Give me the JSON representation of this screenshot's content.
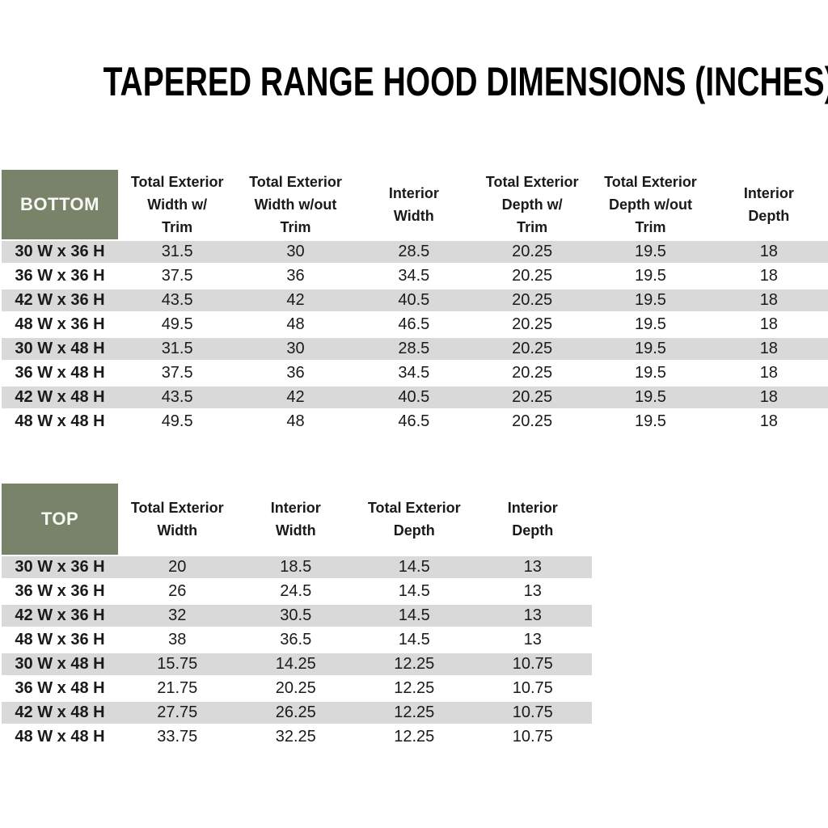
{
  "title": "TAPERED RANGE HOOD DIMENSIONS (INCHES)",
  "colors": {
    "header_green": "#79836A",
    "stripe_gray": "#d9d9d9",
    "title_text": "#000000",
    "body_text": "#1a1a1a",
    "corner_text": "#f7f7f4"
  },
  "bottom_table": {
    "corner_label": "BOTTOM",
    "columns": [
      "Total Exterior\nWidth w/\nTrim",
      "Total Exterior\nWidth w/out\nTrim",
      "Interior\nWidth",
      "Total Exterior\nDepth w/\nTrim",
      "Total Exterior\nDepth w/out\nTrim",
      "Interior\nDepth"
    ],
    "rows": [
      {
        "label": "30 W x 36 H",
        "values": [
          "31.5",
          "30",
          "28.5",
          "20.25",
          "19.5",
          "18"
        ]
      },
      {
        "label": "36 W x 36 H",
        "values": [
          "37.5",
          "36",
          "34.5",
          "20.25",
          "19.5",
          "18"
        ]
      },
      {
        "label": "42 W x 36 H",
        "values": [
          "43.5",
          "42",
          "40.5",
          "20.25",
          "19.5",
          "18"
        ]
      },
      {
        "label": "48 W x 36 H",
        "values": [
          "49.5",
          "48",
          "46.5",
          "20.25",
          "19.5",
          "18"
        ]
      },
      {
        "label": "30 W x 48 H",
        "values": [
          "31.5",
          "30",
          "28.5",
          "20.25",
          "19.5",
          "18"
        ]
      },
      {
        "label": "36 W x 48 H",
        "values": [
          "37.5",
          "36",
          "34.5",
          "20.25",
          "19.5",
          "18"
        ]
      },
      {
        "label": "42 W x 48 H",
        "values": [
          "43.5",
          "42",
          "40.5",
          "20.25",
          "19.5",
          "18"
        ]
      },
      {
        "label": "48 W x 48 H",
        "values": [
          "49.5",
          "48",
          "46.5",
          "20.25",
          "19.5",
          "18"
        ]
      }
    ]
  },
  "top_table": {
    "corner_label": "TOP",
    "columns": [
      "Total Exterior\nWidth",
      "Interior\nWidth",
      "Total Exterior\nDepth",
      "Interior\nDepth"
    ],
    "rows": [
      {
        "label": "30 W x 36 H",
        "values": [
          "20",
          "18.5",
          "14.5",
          "13"
        ]
      },
      {
        "label": "36 W x 36 H",
        "values": [
          "26",
          "24.5",
          "14.5",
          "13"
        ]
      },
      {
        "label": "42 W x 36 H",
        "values": [
          "32",
          "30.5",
          "14.5",
          "13"
        ]
      },
      {
        "label": "48 W x 36 H",
        "values": [
          "38",
          "36.5",
          "14.5",
          "13"
        ]
      },
      {
        "label": "30 W x 48 H",
        "values": [
          "15.75",
          "14.25",
          "12.25",
          "10.75"
        ]
      },
      {
        "label": "36 W x 48 H",
        "values": [
          "21.75",
          "20.25",
          "12.25",
          "10.75"
        ]
      },
      {
        "label": "42 W x 48 H",
        "values": [
          "27.75",
          "26.25",
          "12.25",
          "10.75"
        ]
      },
      {
        "label": "48 W x 48 H",
        "values": [
          "33.75",
          "32.25",
          "12.25",
          "10.75"
        ]
      }
    ]
  }
}
